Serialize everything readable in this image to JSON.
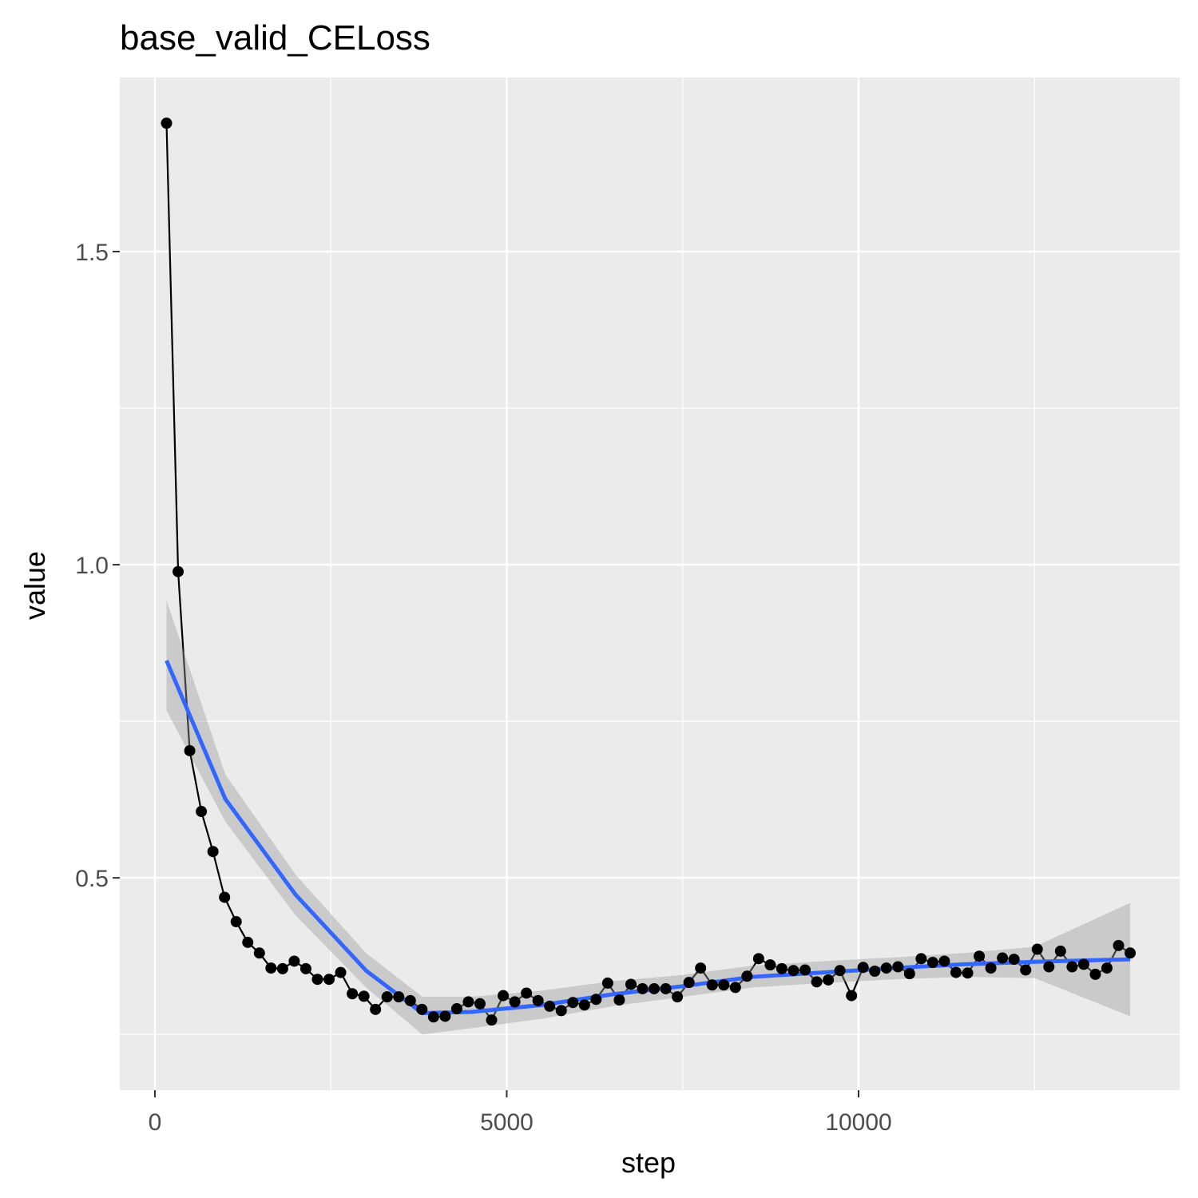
{
  "chart_data": {
    "type": "line",
    "title": "base_valid_CELoss",
    "x_label": "step",
    "y_label": "value",
    "xlim": [
      -499,
      14563
    ],
    "ylim": [
      0.161,
      1.778
    ],
    "xticks": [
      0,
      5000,
      10000
    ],
    "yticks": [
      0.5,
      {
        "value": 1,
        "label": "1.0"
      },
      1.5
    ],
    "xminor": [
      2500,
      7500,
      12500
    ],
    "yminor": [
      0.25,
      0.75,
      1.25
    ],
    "grid": true,
    "series": [
      {
        "color": "#000000",
        "x": [
          165,
          330,
          495,
          660,
          825,
          990,
          1155,
          1320,
          1485,
          1650,
          1815,
          1980,
          2145,
          2310,
          2475,
          2640,
          2805,
          2970,
          3135,
          3300,
          3465,
          3630,
          3795,
          3960,
          4125,
          4290,
          4455,
          4620,
          4785,
          4950,
          5115,
          5280,
          5445,
          5610,
          5775,
          5940,
          6105,
          6270,
          6435,
          6600,
          6765,
          6930,
          7095,
          7260,
          7425,
          7590,
          7755,
          7920,
          8085,
          8250,
          8415,
          8580,
          8745,
          8910,
          9075,
          9240,
          9405,
          9570,
          9735,
          9900,
          10065,
          10230,
          10395,
          10560,
          10725,
          10890,
          11055,
          11220,
          11385,
          11550,
          11715,
          11880,
          12045,
          12210,
          12375,
          12540,
          12705,
          12870,
          13035,
          13200,
          13365,
          13530,
          13695,
          13860
        ],
        "values": [
          1.705,
          0.989,
          0.703,
          0.606,
          0.542,
          0.469,
          0.43,
          0.397,
          0.38,
          0.356,
          0.355,
          0.367,
          0.355,
          0.338,
          0.338,
          0.349,
          0.315,
          0.311,
          0.29,
          0.31,
          0.31,
          0.304,
          0.29,
          0.278,
          0.279,
          0.291,
          0.302,
          0.299,
          0.273,
          0.312,
          0.302,
          0.316,
          0.304,
          0.295,
          0.288,
          0.301,
          0.297,
          0.306,
          0.332,
          0.305,
          0.33,
          0.323,
          0.323,
          0.323,
          0.31,
          0.333,
          0.356,
          0.329,
          0.329,
          0.325,
          0.343,
          0.371,
          0.361,
          0.355,
          0.352,
          0.353,
          0.334,
          0.337,
          0.352,
          0.312,
          0.357,
          0.351,
          0.356,
          0.358,
          0.347,
          0.371,
          0.365,
          0.367,
          0.349,
          0.348,
          0.375,
          0.356,
          0.372,
          0.37,
          0.353,
          0.386,
          0.358,
          0.383,
          0.358,
          0.362,
          0.346,
          0.356,
          0.392,
          0.38
        ]
      },
      {
        "color": "#3366ff",
        "x": [
          165,
          1000,
          2000,
          3000,
          3800,
          4500,
          5500,
          6500,
          7500,
          8500,
          9500,
          10500,
          11500,
          12500,
          13860
        ],
        "values": [
          0.847,
          0.626,
          0.473,
          0.352,
          0.284,
          0.286,
          0.297,
          0.314,
          0.327,
          0.342,
          0.349,
          0.356,
          0.362,
          0.366,
          0.37
        ],
        "lower": [
          0.767,
          0.59,
          0.44,
          0.325,
          0.25,
          0.26,
          0.275,
          0.295,
          0.31,
          0.325,
          0.332,
          0.338,
          0.342,
          0.34,
          0.279
        ],
        "upper": [
          0.943,
          0.665,
          0.505,
          0.38,
          0.31,
          0.31,
          0.32,
          0.335,
          0.345,
          0.36,
          0.367,
          0.373,
          0.38,
          0.39,
          0.46
        ]
      }
    ]
  }
}
